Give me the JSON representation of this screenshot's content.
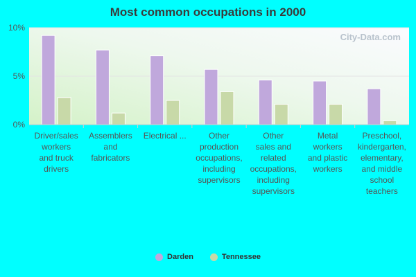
{
  "chart_data": {
    "type": "bar",
    "title": "Most common occupations in 2000",
    "categories": [
      [
        "Driver/sales",
        "workers",
        "and truck",
        "drivers"
      ],
      [
        "Assemblers",
        "and",
        "fabricators"
      ],
      [
        "Electrical ..."
      ],
      [
        "Other",
        "production",
        "occupations,",
        "including",
        "supervisors"
      ],
      [
        "Other",
        "sales and",
        "related",
        "occupations,",
        "including",
        "supervisors"
      ],
      [
        "Metal",
        "workers",
        "and plastic",
        "workers"
      ],
      [
        "Preschool,",
        "kindergarten,",
        "elementary,",
        "and middle",
        "school",
        "teachers"
      ]
    ],
    "series": [
      {
        "name": "Darden",
        "color": "#c0a8dc",
        "values": [
          9.2,
          7.7,
          7.1,
          5.7,
          4.6,
          4.5,
          3.7
        ]
      },
      {
        "name": "Tennessee",
        "color": "#c8d9a8",
        "values": [
          2.8,
          1.2,
          2.5,
          3.4,
          2.1,
          2.1,
          0.4
        ]
      }
    ],
    "ylim": [
      0,
      10
    ],
    "yticks": [
      0,
      5,
      10
    ],
    "ytick_labels": [
      "0%",
      "5%",
      "10%"
    ],
    "legend_position": "bottom",
    "watermark": "City-Data.com"
  }
}
